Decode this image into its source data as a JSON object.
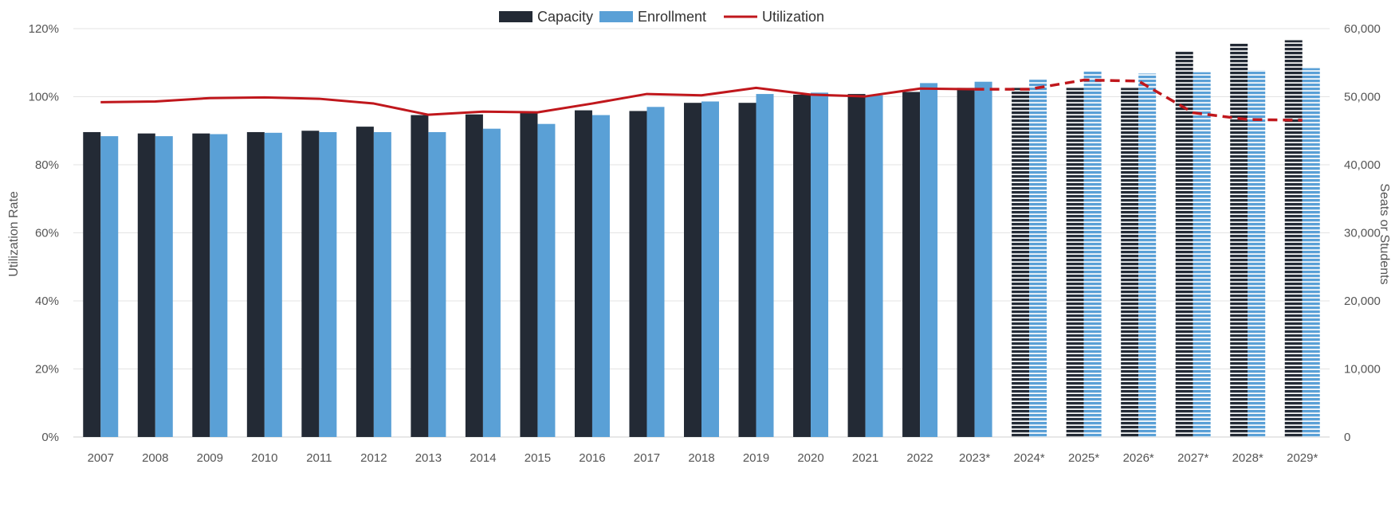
{
  "chart_data": {
    "type": "bar",
    "categories": [
      "2007",
      "2008",
      "2009",
      "2010",
      "2011",
      "2012",
      "2013",
      "2014",
      "2015",
      "2016",
      "2017",
      "2018",
      "2019",
      "2020",
      "2021",
      "2022",
      "2023*",
      "2024*",
      "2025*",
      "2026*",
      "2027*",
      "2028*",
      "2029*"
    ],
    "projected_from_index": 17,
    "series": [
      {
        "name": "Capacity",
        "type": "bar",
        "axis": "right",
        "color": "#232a35",
        "values": [
          44800,
          44600,
          44600,
          44800,
          45000,
          45600,
          47300,
          47400,
          47700,
          48000,
          47900,
          49100,
          49100,
          50300,
          50400,
          50700,
          51300,
          51300,
          51300,
          51300,
          56600,
          57800,
          58300
        ]
      },
      {
        "name": "Enrollment",
        "type": "bar",
        "axis": "right",
        "color": "#5aa0d6",
        "values": [
          44200,
          44200,
          44500,
          44700,
          44800,
          44800,
          44800,
          45300,
          46000,
          47300,
          48500,
          49300,
          50400,
          50600,
          50200,
          52000,
          52200,
          52500,
          53700,
          53400,
          53600,
          53900,
          54200
        ]
      },
      {
        "name": "Utilization",
        "type": "line",
        "axis": "left",
        "color": "#c0171c",
        "values": [
          98.4,
          98.6,
          99.6,
          99.8,
          99.4,
          98.0,
          94.7,
          95.6,
          95.4,
          98.0,
          100.8,
          100.4,
          102.6,
          100.6,
          100.1,
          102.4,
          102.2,
          102.2,
          104.9,
          104.6,
          95.3,
          93.3,
          93.1
        ]
      }
    ],
    "left_axis": {
      "label": "Utilization Rate",
      "min": 0,
      "max": 120,
      "ticks": [
        0,
        20,
        40,
        60,
        80,
        100,
        120
      ],
      "tick_labels": [
        "0%",
        "20%",
        "40%",
        "60%",
        "80%",
        "100%",
        "120%"
      ]
    },
    "right_axis": {
      "label": "Seats or Students",
      "min": 0,
      "max": 60000,
      "ticks": [
        0,
        10000,
        20000,
        30000,
        40000,
        50000,
        60000
      ],
      "tick_labels": [
        "0",
        "10,000",
        "20,000",
        "30,000",
        "40,000",
        "50,000",
        "60,000"
      ]
    },
    "grid": "horizontal",
    "legend": {
      "position": "top-center",
      "items": [
        "Capacity",
        "Enrollment",
        "Utilization"
      ]
    },
    "title": ""
  }
}
